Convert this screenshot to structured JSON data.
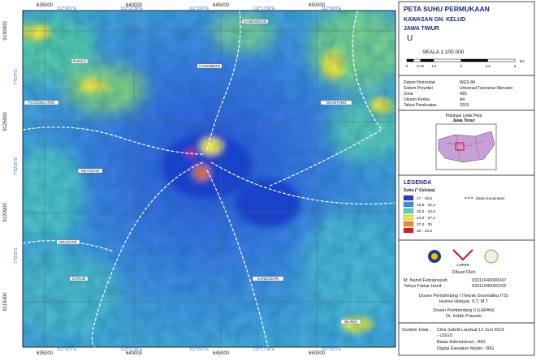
{
  "map": {
    "utm_x_ticks": [
      "635000",
      "640000",
      "645000",
      "650000"
    ],
    "utm_y_ticks": [
      "9130000",
      "9125000",
      "9120000",
      "9115000"
    ],
    "lon_ticks": [
      "112°10'0\"E",
      "112°12'30\"E",
      "112°15'0\"E",
      "112°17'30\"E",
      "112°20'0\"E"
    ],
    "lat_ticks": [
      "7°50'0\"S",
      "7°52'30\"S",
      "7°55'0\"S"
    ],
    "places": [
      "KANDANGAN",
      "PUNCU",
      "KASEMBON",
      "PLOSOKLATEN",
      "NGANTANG",
      "NGANCAR",
      "NGLEGOK",
      "GARUM",
      "GANDUSARI",
      "WLINGI"
    ]
  },
  "panel": {
    "title": "PETA SUHU PERMUKAAN",
    "subtitle": "KAWASAN GN. KELUD",
    "region": "JAWA TIMUR",
    "north": "U",
    "scale": "SKALA 1:100.000",
    "scale_ticks": [
      "0",
      "0,75",
      "1,5",
      "3",
      "4,5",
      "6"
    ],
    "scale_unit": "km",
    "info": [
      [
        "Datum Horizontal",
        "WGS 84"
      ],
      [
        "Sistem Proyeksi",
        "Universal Tranverse Mercator"
      ],
      [
        "Zona",
        "49S"
      ],
      [
        "Ukuran Kertas",
        "A4"
      ],
      [
        "Tahun Pembuatan",
        "2019"
      ]
    ],
    "inset_title": "Petunjuk Letak Peta",
    "inset_subtitle": "Jawa Timur",
    "legend_title": "LEGENDA",
    "legend_subtitle": "Suhu (° Celcius)",
    "legend": [
      {
        "label": "17 - 19,6",
        "color": "#1c3fd0"
      },
      {
        "label": "19,6 - 22,2",
        "color": "#3c8ae6"
      },
      {
        "label": "22,2 - 24,8",
        "color": "#4fd2c6"
      },
      {
        "label": "24,8 - 27,4",
        "color": "#f0e640"
      },
      {
        "label": "27,4 - 30",
        "color": "#f08a1c"
      },
      {
        "label": "30 - 33,8",
        "color": "#e21a1a"
      }
    ],
    "boundary_label": "Batas Kecamatan",
    "logo_text": "LAPAN",
    "made_by": "Dibuat Oleh",
    "authors": [
      [
        "M. Nahdi Febriansyah",
        "03311640000047"
      ],
      [
        "Yahya Faikar Hanif",
        "03311640000102"
      ]
    ],
    "advisor1_title": "Dosen Pembimbing I (Teknik Geomatika ITS)",
    "advisor1": "Husnul Hidayat, S.T, M.T",
    "advisor2_title": "Dosen Pembimbing II (LAPAN)",
    "advisor2": "Dr. Indah Prasasti",
    "source_label": "Sumber Data :",
    "sources": [
      "Citra Satelit Landsat 12 Juni 2019",
      "- USGS",
      "Batas Administrasi - BIG",
      "Digital Elevation Model - BIG"
    ]
  }
}
